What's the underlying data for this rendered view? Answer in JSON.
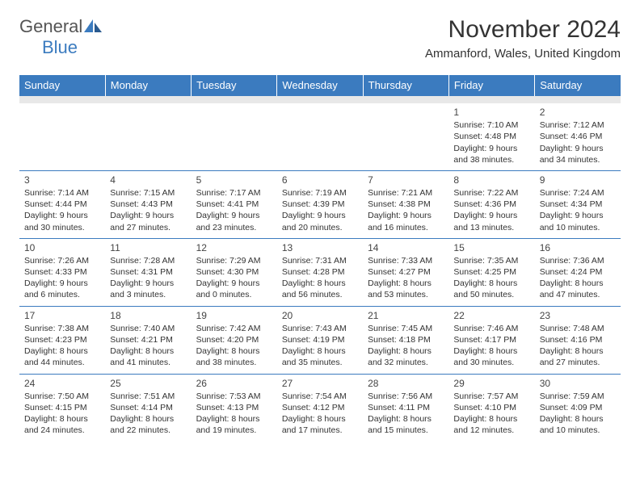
{
  "brand": {
    "part1": "General",
    "part2": "Blue"
  },
  "title": "November 2024",
  "location": "Ammanford, Wales, United Kingdom",
  "colors": {
    "header_bg": "#3b7bbf",
    "header_text": "#ffffff",
    "sep_bg": "#e8e8e8",
    "border": "#3b7bbf",
    "text": "#333333",
    "brand_gray": "#555555",
    "brand_blue": "#3b7bbf"
  },
  "typography": {
    "title_fontsize": 30,
    "location_fontsize": 15,
    "header_fontsize": 13,
    "cell_fontsize": 10.5,
    "daynum_fontsize": 12
  },
  "dayHeaders": [
    "Sunday",
    "Monday",
    "Tuesday",
    "Wednesday",
    "Thursday",
    "Friday",
    "Saturday"
  ],
  "weeks": [
    [
      null,
      null,
      null,
      null,
      null,
      {
        "n": "1",
        "sr": "Sunrise: 7:10 AM",
        "ss": "Sunset: 4:48 PM",
        "dl1": "Daylight: 9 hours",
        "dl2": "and 38 minutes."
      },
      {
        "n": "2",
        "sr": "Sunrise: 7:12 AM",
        "ss": "Sunset: 4:46 PM",
        "dl1": "Daylight: 9 hours",
        "dl2": "and 34 minutes."
      }
    ],
    [
      {
        "n": "3",
        "sr": "Sunrise: 7:14 AM",
        "ss": "Sunset: 4:44 PM",
        "dl1": "Daylight: 9 hours",
        "dl2": "and 30 minutes."
      },
      {
        "n": "4",
        "sr": "Sunrise: 7:15 AM",
        "ss": "Sunset: 4:43 PM",
        "dl1": "Daylight: 9 hours",
        "dl2": "and 27 minutes."
      },
      {
        "n": "5",
        "sr": "Sunrise: 7:17 AM",
        "ss": "Sunset: 4:41 PM",
        "dl1": "Daylight: 9 hours",
        "dl2": "and 23 minutes."
      },
      {
        "n": "6",
        "sr": "Sunrise: 7:19 AM",
        "ss": "Sunset: 4:39 PM",
        "dl1": "Daylight: 9 hours",
        "dl2": "and 20 minutes."
      },
      {
        "n": "7",
        "sr": "Sunrise: 7:21 AM",
        "ss": "Sunset: 4:38 PM",
        "dl1": "Daylight: 9 hours",
        "dl2": "and 16 minutes."
      },
      {
        "n": "8",
        "sr": "Sunrise: 7:22 AM",
        "ss": "Sunset: 4:36 PM",
        "dl1": "Daylight: 9 hours",
        "dl2": "and 13 minutes."
      },
      {
        "n": "9",
        "sr": "Sunrise: 7:24 AM",
        "ss": "Sunset: 4:34 PM",
        "dl1": "Daylight: 9 hours",
        "dl2": "and 10 minutes."
      }
    ],
    [
      {
        "n": "10",
        "sr": "Sunrise: 7:26 AM",
        "ss": "Sunset: 4:33 PM",
        "dl1": "Daylight: 9 hours",
        "dl2": "and 6 minutes."
      },
      {
        "n": "11",
        "sr": "Sunrise: 7:28 AM",
        "ss": "Sunset: 4:31 PM",
        "dl1": "Daylight: 9 hours",
        "dl2": "and 3 minutes."
      },
      {
        "n": "12",
        "sr": "Sunrise: 7:29 AM",
        "ss": "Sunset: 4:30 PM",
        "dl1": "Daylight: 9 hours",
        "dl2": "and 0 minutes."
      },
      {
        "n": "13",
        "sr": "Sunrise: 7:31 AM",
        "ss": "Sunset: 4:28 PM",
        "dl1": "Daylight: 8 hours",
        "dl2": "and 56 minutes."
      },
      {
        "n": "14",
        "sr": "Sunrise: 7:33 AM",
        "ss": "Sunset: 4:27 PM",
        "dl1": "Daylight: 8 hours",
        "dl2": "and 53 minutes."
      },
      {
        "n": "15",
        "sr": "Sunrise: 7:35 AM",
        "ss": "Sunset: 4:25 PM",
        "dl1": "Daylight: 8 hours",
        "dl2": "and 50 minutes."
      },
      {
        "n": "16",
        "sr": "Sunrise: 7:36 AM",
        "ss": "Sunset: 4:24 PM",
        "dl1": "Daylight: 8 hours",
        "dl2": "and 47 minutes."
      }
    ],
    [
      {
        "n": "17",
        "sr": "Sunrise: 7:38 AM",
        "ss": "Sunset: 4:23 PM",
        "dl1": "Daylight: 8 hours",
        "dl2": "and 44 minutes."
      },
      {
        "n": "18",
        "sr": "Sunrise: 7:40 AM",
        "ss": "Sunset: 4:21 PM",
        "dl1": "Daylight: 8 hours",
        "dl2": "and 41 minutes."
      },
      {
        "n": "19",
        "sr": "Sunrise: 7:42 AM",
        "ss": "Sunset: 4:20 PM",
        "dl1": "Daylight: 8 hours",
        "dl2": "and 38 minutes."
      },
      {
        "n": "20",
        "sr": "Sunrise: 7:43 AM",
        "ss": "Sunset: 4:19 PM",
        "dl1": "Daylight: 8 hours",
        "dl2": "and 35 minutes."
      },
      {
        "n": "21",
        "sr": "Sunrise: 7:45 AM",
        "ss": "Sunset: 4:18 PM",
        "dl1": "Daylight: 8 hours",
        "dl2": "and 32 minutes."
      },
      {
        "n": "22",
        "sr": "Sunrise: 7:46 AM",
        "ss": "Sunset: 4:17 PM",
        "dl1": "Daylight: 8 hours",
        "dl2": "and 30 minutes."
      },
      {
        "n": "23",
        "sr": "Sunrise: 7:48 AM",
        "ss": "Sunset: 4:16 PM",
        "dl1": "Daylight: 8 hours",
        "dl2": "and 27 minutes."
      }
    ],
    [
      {
        "n": "24",
        "sr": "Sunrise: 7:50 AM",
        "ss": "Sunset: 4:15 PM",
        "dl1": "Daylight: 8 hours",
        "dl2": "and 24 minutes."
      },
      {
        "n": "25",
        "sr": "Sunrise: 7:51 AM",
        "ss": "Sunset: 4:14 PM",
        "dl1": "Daylight: 8 hours",
        "dl2": "and 22 minutes."
      },
      {
        "n": "26",
        "sr": "Sunrise: 7:53 AM",
        "ss": "Sunset: 4:13 PM",
        "dl1": "Daylight: 8 hours",
        "dl2": "and 19 minutes."
      },
      {
        "n": "27",
        "sr": "Sunrise: 7:54 AM",
        "ss": "Sunset: 4:12 PM",
        "dl1": "Daylight: 8 hours",
        "dl2": "and 17 minutes."
      },
      {
        "n": "28",
        "sr": "Sunrise: 7:56 AM",
        "ss": "Sunset: 4:11 PM",
        "dl1": "Daylight: 8 hours",
        "dl2": "and 15 minutes."
      },
      {
        "n": "29",
        "sr": "Sunrise: 7:57 AM",
        "ss": "Sunset: 4:10 PM",
        "dl1": "Daylight: 8 hours",
        "dl2": "and 12 minutes."
      },
      {
        "n": "30",
        "sr": "Sunrise: 7:59 AM",
        "ss": "Sunset: 4:09 PM",
        "dl1": "Daylight: 8 hours",
        "dl2": "and 10 minutes."
      }
    ]
  ]
}
